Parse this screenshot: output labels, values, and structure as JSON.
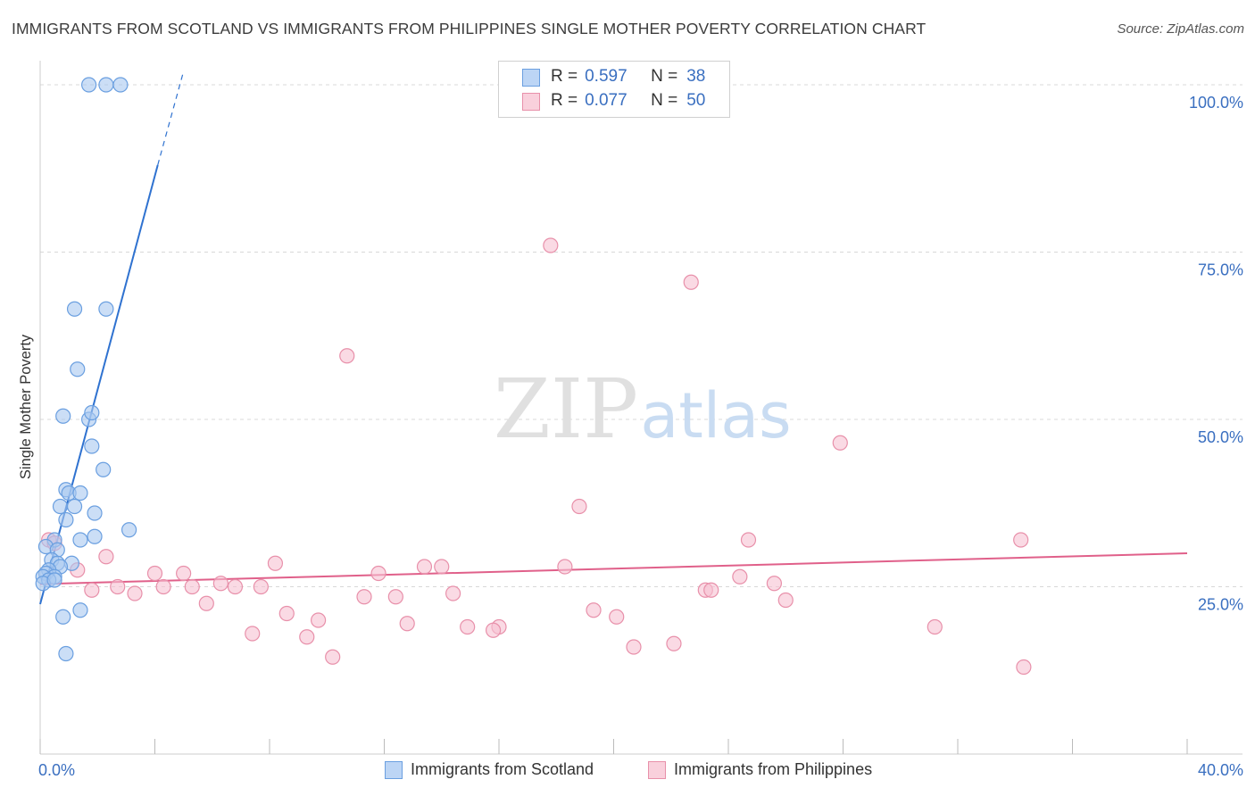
{
  "title": "IMMIGRANTS FROM SCOTLAND VS IMMIGRANTS FROM PHILIPPINES SINGLE MOTHER POVERTY CORRELATION CHART",
  "source": "Source: ZipAtlas.com",
  "watermark": {
    "part1": "ZIP",
    "part2": "atlas"
  },
  "legend_box": {
    "rows": [
      {
        "r_label": "R =",
        "r_value": "0.597",
        "n_label": "N =",
        "n_value": "38"
      },
      {
        "r_label": "R =",
        "r_value": "0.077",
        "n_label": "N =",
        "n_value": "50"
      }
    ]
  },
  "bottom_legend": {
    "scotland": "Immigrants from Scotland",
    "philippines": "Immigrants from Philippines"
  },
  "colors": {
    "scotland_fill": "#a8c8f0",
    "scotland_stroke": "#6a9fe0",
    "scotland_line": "#2f72d0",
    "philippines_fill": "#f7c2d2",
    "philippines_stroke": "#e890aa",
    "philippines_line": "#e0608a",
    "axis_text": "#3a6fc0",
    "grid": "#d8d8d8"
  },
  "chart_data": {
    "type": "scatter",
    "title": "IMMIGRANTS FROM SCOTLAND VS IMMIGRANTS FROM PHILIPPINES SINGLE MOTHER POVERTY CORRELATION CHART",
    "xlabel": "",
    "ylabel": "Single Mother Poverty",
    "xlim": [
      0,
      40
    ],
    "ylim": [
      0,
      102
    ],
    "x_tick_labels": [
      "0.0%",
      "40.0%"
    ],
    "y_ticks": [
      25,
      50,
      75,
      100
    ],
    "y_tick_labels": [
      "25.0%",
      "50.0%",
      "75.0%",
      "100.0%"
    ],
    "grid": true,
    "legend_position": "top-center",
    "series": [
      {
        "name": "Immigrants from Scotland",
        "r": 0.597,
        "n": 38,
        "trend": {
          "x0": 0.0,
          "y0": 22.4,
          "x1": 4.1,
          "y1": 88.0,
          "dash_x1": 5.0,
          "dash_y1": 102.0
        },
        "points": [
          [
            1.7,
            100
          ],
          [
            2.3,
            100
          ],
          [
            2.8,
            100
          ],
          [
            1.2,
            66.5
          ],
          [
            2.3,
            66.5
          ],
          [
            1.3,
            57.5
          ],
          [
            0.8,
            50.5
          ],
          [
            1.7,
            50.0
          ],
          [
            1.8,
            51.0
          ],
          [
            1.8,
            46.0
          ],
          [
            2.2,
            42.5
          ],
          [
            0.9,
            39.5
          ],
          [
            1.0,
            39.0
          ],
          [
            1.4,
            39.0
          ],
          [
            0.7,
            37.0
          ],
          [
            1.2,
            37.0
          ],
          [
            1.9,
            36.0
          ],
          [
            0.9,
            35.0
          ],
          [
            3.1,
            33.5
          ],
          [
            1.9,
            32.5
          ],
          [
            1.4,
            32.0
          ],
          [
            0.5,
            32.0
          ],
          [
            0.2,
            31.0
          ],
          [
            0.6,
            30.5
          ],
          [
            0.4,
            29.0
          ],
          [
            0.6,
            28.5
          ],
          [
            1.1,
            28.5
          ],
          [
            0.7,
            28.0
          ],
          [
            0.3,
            27.5
          ],
          [
            0.2,
            27.0
          ],
          [
            0.5,
            26.5
          ],
          [
            0.1,
            26.5
          ],
          [
            0.3,
            26.0
          ],
          [
            0.1,
            25.5
          ],
          [
            1.4,
            21.5
          ],
          [
            0.8,
            20.5
          ],
          [
            0.9,
            15.0
          ],
          [
            0.5,
            26.0
          ]
        ]
      },
      {
        "name": "Immigrants from Philippines",
        "r": 0.077,
        "n": 50,
        "trend": {
          "x0": 0.0,
          "y0": 25.4,
          "x1": 40.0,
          "y1": 30.0
        },
        "points": [
          [
            17.8,
            76.0
          ],
          [
            22.7,
            70.5
          ],
          [
            10.7,
            59.5
          ],
          [
            27.9,
            46.5
          ],
          [
            18.8,
            37.0
          ],
          [
            24.7,
            32.0
          ],
          [
            34.2,
            32.0
          ],
          [
            0.3,
            32.0
          ],
          [
            0.5,
            31.5
          ],
          [
            2.3,
            29.5
          ],
          [
            8.2,
            28.5
          ],
          [
            13.4,
            28.0
          ],
          [
            14.0,
            28.0
          ],
          [
            18.3,
            28.0
          ],
          [
            1.3,
            27.5
          ],
          [
            4.0,
            27.0
          ],
          [
            5.0,
            27.0
          ],
          [
            11.8,
            27.0
          ],
          [
            24.4,
            26.5
          ],
          [
            6.3,
            25.5
          ],
          [
            25.6,
            25.5
          ],
          [
            2.7,
            25.0
          ],
          [
            4.3,
            25.0
          ],
          [
            5.3,
            25.0
          ],
          [
            6.8,
            25.0
          ],
          [
            7.7,
            25.0
          ],
          [
            1.8,
            24.5
          ],
          [
            3.3,
            24.0
          ],
          [
            14.4,
            24.0
          ],
          [
            23.2,
            24.5
          ],
          [
            23.4,
            24.5
          ],
          [
            11.3,
            23.5
          ],
          [
            12.4,
            23.5
          ],
          [
            26.0,
            23.0
          ],
          [
            5.8,
            22.5
          ],
          [
            19.3,
            21.5
          ],
          [
            8.6,
            21.0
          ],
          [
            20.1,
            20.5
          ],
          [
            9.7,
            20.0
          ],
          [
            12.8,
            19.5
          ],
          [
            14.9,
            19.0
          ],
          [
            16.0,
            19.0
          ],
          [
            31.2,
            19.0
          ],
          [
            15.8,
            18.5
          ],
          [
            7.4,
            18.0
          ],
          [
            9.3,
            17.5
          ],
          [
            20.7,
            16.0
          ],
          [
            22.1,
            16.5
          ],
          [
            10.2,
            14.5
          ],
          [
            34.3,
            13.0
          ]
        ]
      }
    ]
  }
}
